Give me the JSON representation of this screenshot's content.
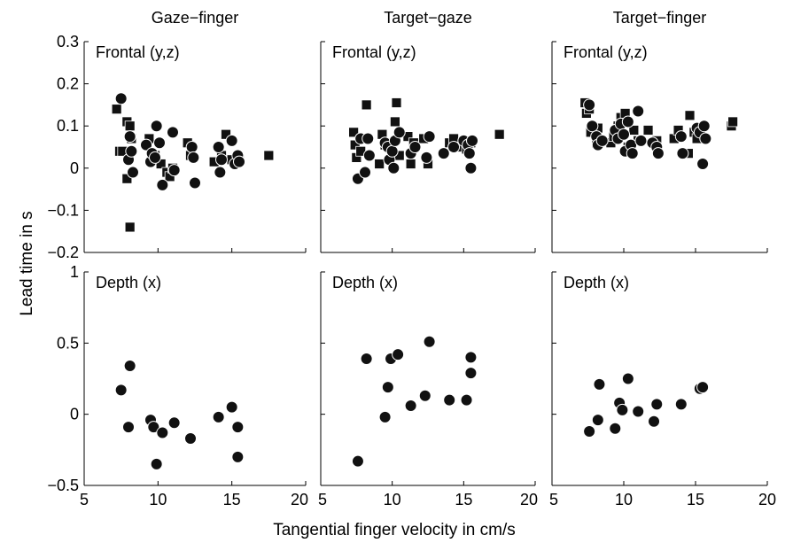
{
  "chart_data": {
    "type": "scatter",
    "xlabel": "Tangential finger velocity in cm/s",
    "ylabel": "Lead time in s",
    "x_ticks": [
      "5",
      "10",
      "15",
      "20"
    ],
    "xlim": [
      5,
      20
    ],
    "columns": [
      "Gaze−finger",
      "Target−gaze",
      "Target−finger"
    ],
    "rows": [
      {
        "label": "Frontal (y,z)",
        "ylim": [
          -0.2,
          0.3
        ],
        "y_ticks": [
          "0.3",
          "0.2",
          "0.1",
          "0",
          "−0.1",
          "−0.2"
        ],
        "marker_series": [
          "y (square)",
          "z (circle)"
        ]
      },
      {
        "label": "Depth (x)",
        "ylim": [
          -0.5,
          1
        ],
        "y_ticks": [
          "1",
          "0.5",
          "0",
          "−0.5"
        ],
        "marker_series": [
          "x (circle)"
        ]
      }
    ],
    "panels": [
      {
        "column": "Gaze−finger",
        "row": "Frontal (y,z)",
        "squares": [
          [
            7.2,
            0.14
          ],
          [
            7.4,
            0.04
          ],
          [
            7.6,
            0.04
          ],
          [
            7.9,
            0.11
          ],
          [
            8.1,
            0.1
          ],
          [
            8.2,
            0.07
          ],
          [
            7.9,
            -0.025
          ],
          [
            8.1,
            -0.14
          ],
          [
            9.4,
            0.07
          ],
          [
            9.6,
            0.02
          ],
          [
            9.8,
            0.03
          ],
          [
            10.2,
            0.01
          ],
          [
            10.6,
            -0.01
          ],
          [
            10.8,
            -0.02
          ],
          [
            11.0,
            0.0
          ],
          [
            12.0,
            0.06
          ],
          [
            12.2,
            0.03
          ],
          [
            13.8,
            0.015
          ],
          [
            14.3,
            0.03
          ],
          [
            14.6,
            0.08
          ],
          [
            15.0,
            0.02
          ],
          [
            15.5,
            0.02
          ],
          [
            17.5,
            0.03
          ]
        ],
        "circles": [
          [
            7.5,
            0.165
          ],
          [
            8.0,
            0.02
          ],
          [
            8.1,
            0.075
          ],
          [
            8.2,
            0.04
          ],
          [
            8.3,
            -0.01
          ],
          [
            9.2,
            0.055
          ],
          [
            9.5,
            0.015
          ],
          [
            9.6,
            0.035
          ],
          [
            9.8,
            0.025
          ],
          [
            9.9,
            0.1
          ],
          [
            10.1,
            0.06
          ],
          [
            10.3,
            -0.04
          ],
          [
            11.0,
            0.085
          ],
          [
            11.1,
            -0.005
          ],
          [
            12.3,
            0.05
          ],
          [
            12.4,
            0.025
          ],
          [
            12.5,
            -0.035
          ],
          [
            14.1,
            0.05
          ],
          [
            14.3,
            0.02
          ],
          [
            14.2,
            -0.01
          ],
          [
            15.0,
            0.065
          ],
          [
            15.2,
            0.01
          ],
          [
            15.4,
            0.03
          ],
          [
            15.5,
            0.015
          ]
        ]
      },
      {
        "column": "Target−gaze",
        "row": "Frontal (y,z)",
        "squares": [
          [
            7.3,
            0.085
          ],
          [
            7.4,
            0.055
          ],
          [
            7.5,
            0.025
          ],
          [
            8.2,
            0.15
          ],
          [
            7.8,
            0.04
          ],
          [
            9.1,
            0.01
          ],
          [
            9.3,
            0.08
          ],
          [
            9.5,
            0.055
          ],
          [
            10.3,
            0.155
          ],
          [
            10.2,
            0.11
          ],
          [
            10.5,
            0.03
          ],
          [
            11.1,
            0.075
          ],
          [
            11.3,
            0.01
          ],
          [
            11.5,
            0.06
          ],
          [
            12.2,
            0.07
          ],
          [
            12.5,
            0.01
          ],
          [
            14.0,
            0.06
          ],
          [
            14.3,
            0.07
          ],
          [
            14.7,
            0.05
          ],
          [
            15.2,
            0.045
          ],
          [
            15.5,
            0.06
          ],
          [
            17.5,
            0.08
          ]
        ],
        "circles": [
          [
            7.6,
            -0.025
          ],
          [
            7.8,
            0.07
          ],
          [
            8.1,
            -0.01
          ],
          [
            8.3,
            0.07
          ],
          [
            8.4,
            0.03
          ],
          [
            9.5,
            0.06
          ],
          [
            9.7,
            0.05
          ],
          [
            9.8,
            0.02
          ],
          [
            10.0,
            0.04
          ],
          [
            10.1,
            0.0
          ],
          [
            10.2,
            0.065
          ],
          [
            10.5,
            0.085
          ],
          [
            11.3,
            0.035
          ],
          [
            11.6,
            0.05
          ],
          [
            12.4,
            0.025
          ],
          [
            12.6,
            0.075
          ],
          [
            13.6,
            0.035
          ],
          [
            14.3,
            0.05
          ],
          [
            15.0,
            0.065
          ],
          [
            15.3,
            0.055
          ],
          [
            15.4,
            0.035
          ],
          [
            15.5,
            0.0
          ],
          [
            15.6,
            0.065
          ]
        ]
      },
      {
        "column": "Target−finger",
        "row": "Frontal (y,z)",
        "squares": [
          [
            7.3,
            0.155
          ],
          [
            7.4,
            0.13
          ],
          [
            7.6,
            0.14
          ],
          [
            7.7,
            0.085
          ],
          [
            8.2,
            0.095
          ],
          [
            8.1,
            0.06
          ],
          [
            9.1,
            0.06
          ],
          [
            9.3,
            0.075
          ],
          [
            9.6,
            0.1
          ],
          [
            9.8,
            0.12
          ],
          [
            10.1,
            0.13
          ],
          [
            10.3,
            0.05
          ],
          [
            10.7,
            0.09
          ],
          [
            11.0,
            0.065
          ],
          [
            11.7,
            0.09
          ],
          [
            12.3,
            0.065
          ],
          [
            13.5,
            0.07
          ],
          [
            13.8,
            0.09
          ],
          [
            14.6,
            0.125
          ],
          [
            14.9,
            0.085
          ],
          [
            15.1,
            0.07
          ],
          [
            17.5,
            0.1
          ],
          [
            17.6,
            0.11
          ],
          [
            14.5,
            0.035
          ]
        ],
        "circles": [
          [
            7.6,
            0.15
          ],
          [
            7.8,
            0.1
          ],
          [
            8.1,
            0.075
          ],
          [
            8.2,
            0.055
          ],
          [
            8.5,
            0.065
          ],
          [
            9.4,
            0.09
          ],
          [
            9.6,
            0.07
          ],
          [
            9.8,
            0.105
          ],
          [
            10.0,
            0.08
          ],
          [
            10.1,
            0.04
          ],
          [
            10.3,
            0.11
          ],
          [
            10.5,
            0.055
          ],
          [
            10.6,
            0.035
          ],
          [
            11.0,
            0.135
          ],
          [
            11.2,
            0.065
          ],
          [
            12.0,
            0.06
          ],
          [
            12.3,
            0.05
          ],
          [
            12.4,
            0.035
          ],
          [
            14.0,
            0.075
          ],
          [
            14.1,
            0.035
          ],
          [
            15.1,
            0.095
          ],
          [
            15.3,
            0.085
          ],
          [
            15.5,
            0.01
          ],
          [
            15.6,
            0.1
          ],
          [
            15.7,
            0.07
          ]
        ]
      },
      {
        "column": "Gaze−finger",
        "row": "Depth (x)",
        "squares": [],
        "circles": [
          [
            7.5,
            0.17
          ],
          [
            8.0,
            -0.09
          ],
          [
            8.1,
            0.34
          ],
          [
            9.5,
            -0.04
          ],
          [
            9.7,
            -0.09
          ],
          [
            9.9,
            -0.35
          ],
          [
            10.3,
            -0.13
          ],
          [
            11.1,
            -0.06
          ],
          [
            12.2,
            -0.17
          ],
          [
            14.1,
            -0.02
          ],
          [
            15.0,
            0.05
          ],
          [
            15.4,
            -0.09
          ],
          [
            15.4,
            -0.3
          ]
        ]
      },
      {
        "column": "Target−gaze",
        "row": "Depth (x)",
        "squares": [],
        "circles": [
          [
            7.6,
            -0.33
          ],
          [
            8.2,
            0.39
          ],
          [
            9.5,
            -0.02
          ],
          [
            9.7,
            0.19
          ],
          [
            9.9,
            0.39
          ],
          [
            10.4,
            0.42
          ],
          [
            11.3,
            0.06
          ],
          [
            12.3,
            0.13
          ],
          [
            12.6,
            0.51
          ],
          [
            14.0,
            0.1
          ],
          [
            15.2,
            0.1
          ],
          [
            15.5,
            0.29
          ],
          [
            15.5,
            0.4
          ]
        ]
      },
      {
        "column": "Target−finger",
        "row": "Depth (x)",
        "squares": [],
        "circles": [
          [
            7.6,
            -0.12
          ],
          [
            8.2,
            -0.04
          ],
          [
            8.3,
            0.21
          ],
          [
            9.4,
            -0.1
          ],
          [
            9.7,
            0.08
          ],
          [
            9.9,
            0.03
          ],
          [
            10.3,
            0.25
          ],
          [
            11.0,
            0.02
          ],
          [
            12.1,
            -0.05
          ],
          [
            12.3,
            0.07
          ],
          [
            14.0,
            0.07
          ],
          [
            15.3,
            0.18
          ],
          [
            15.5,
            0.19
          ]
        ]
      }
    ]
  }
}
